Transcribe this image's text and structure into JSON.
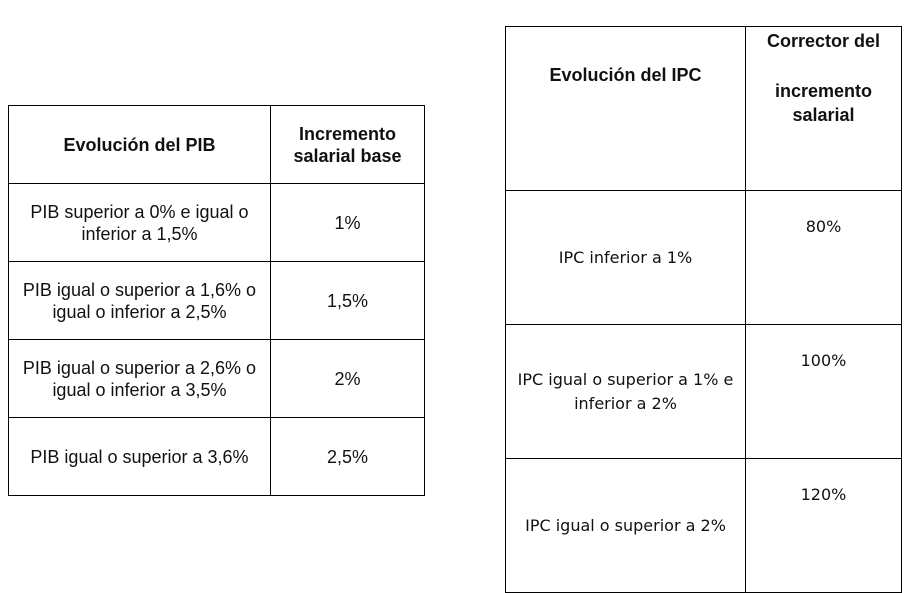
{
  "pib_table": {
    "headers": [
      "Evolución del PIB",
      "Incremento salarial base"
    ],
    "rows": [
      {
        "condition": "PIB superior a 0% e igual o inferior a 1,5%",
        "value": "1%"
      },
      {
        "condition": "PIB igual o superior a 1,6% o igual o inferior a 2,5%",
        "value": "1,5%"
      },
      {
        "condition": "PIB igual o superior a 2,6% o igual o inferior a 3,5%",
        "value": "2%"
      },
      {
        "condition": "PIB igual o superior a 3,6%",
        "value": "2,5%"
      }
    ]
  },
  "ipc_table": {
    "header_condition": "Evolución del IPC",
    "header_value_line1": "Corrector del",
    "header_value_line2": "incremento salarial",
    "rows": [
      {
        "condition": "IPC inferior a 1%",
        "value": "80%"
      },
      {
        "condition": "IPC igual o superior a 1% e inferior a 2%",
        "value": "100%"
      },
      {
        "condition": "IPC igual o superior a 2%",
        "value": "120%"
      }
    ]
  }
}
